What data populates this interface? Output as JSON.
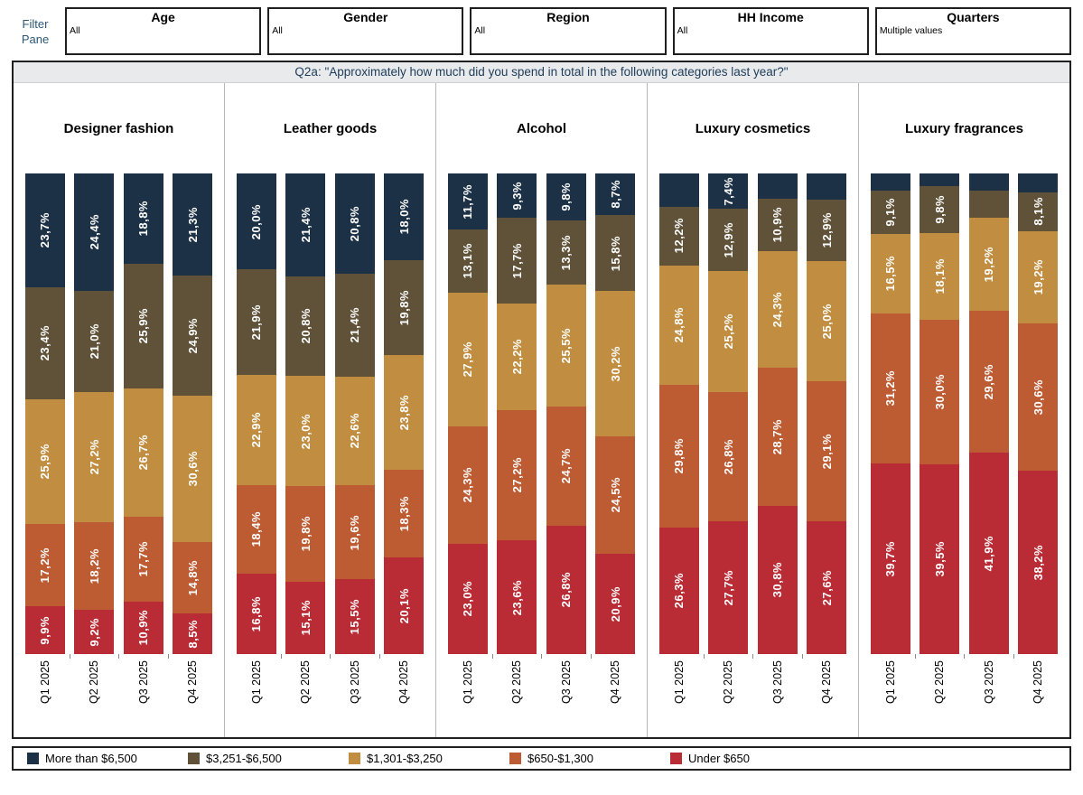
{
  "filter_pane": {
    "label_line1": "Filter",
    "label_line2": "Pane",
    "filters": [
      {
        "title": "Age",
        "value": "All"
      },
      {
        "title": "Gender",
        "value": "All"
      },
      {
        "title": "Region",
        "value": "All"
      },
      {
        "title": "HH Income",
        "value": "All"
      },
      {
        "title": "Quarters",
        "value": "Multiple values"
      }
    ]
  },
  "title_bar": {
    "text": "Q2a: \"Approximately how much did you spend in total in the following categories last year?\""
  },
  "legend": {
    "items": [
      {
        "label": "More than $6,500",
        "color": "#1c3146"
      },
      {
        "label": "$3,251-$6,500",
        "color": "#5f5238"
      },
      {
        "label": "$1,301-$3,250",
        "color": "#c18e41"
      },
      {
        "label": "$650-$1,300",
        "color": "#bd5b33"
      },
      {
        "label": "Under $650",
        "color": "#b92c35"
      }
    ]
  },
  "chart_data": {
    "type": "bar",
    "subtype": "100%-stacked-vertical",
    "title": "Q2a: \"Approximately how much did you spend in total in the following categories last year?\"",
    "categories": [
      "Q1 2025",
      "Q2 2025",
      "Q3 2025",
      "Q4 2025"
    ],
    "series_top_to_bottom": [
      "More than $6,500",
      "$3,251-$6,500",
      "$1,301-$3,250",
      "$650-$1,300",
      "Under $650"
    ],
    "colors": [
      "#1c3146",
      "#5f5238",
      "#c18e41",
      "#bd5b33",
      "#b92c35"
    ],
    "value_format": "percent with comma decimal, labels rotated 90° bottom-to-top, hidden when segment too small",
    "ylim": [
      0,
      100
    ],
    "grid": false,
    "legend_position": "bottom",
    "panels": [
      {
        "label": "Designer fashion",
        "bars": [
          {
            "x": "Q1 2025",
            "values": [
              23.7,
              23.4,
              25.9,
              17.2,
              9.9
            ],
            "labels": [
              "23,7%",
              "23,4%",
              "25,9%",
              "17,2%",
              "9,9%"
            ]
          },
          {
            "x": "Q2 2025",
            "values": [
              24.4,
              21.0,
              27.2,
              18.2,
              9.2
            ],
            "labels": [
              "24,4%",
              "21,0%",
              "27,2%",
              "18,2%",
              "9,2%"
            ]
          },
          {
            "x": "Q3 2025",
            "values": [
              18.8,
              25.9,
              26.7,
              17.7,
              10.9
            ],
            "labels": [
              "18,8%",
              "25,9%",
              "26,7%",
              "17,7%",
              "10,9%"
            ]
          },
          {
            "x": "Q4 2025",
            "values": [
              21.3,
              24.9,
              30.6,
              14.8,
              8.5
            ],
            "labels": [
              "21,3%",
              "24,9%",
              "30,6%",
              "14,8%",
              "8,5%"
            ]
          }
        ]
      },
      {
        "label": "Leather goods",
        "bars": [
          {
            "x": "Q1 2025",
            "values": [
              20.0,
              21.9,
              22.9,
              18.4,
              16.8
            ],
            "labels": [
              "20,0%",
              "21,9%",
              "22,9%",
              "18,4%",
              "16,8%"
            ]
          },
          {
            "x": "Q2 2025",
            "values": [
              21.4,
              20.8,
              23.0,
              19.8,
              15.1
            ],
            "labels": [
              "21,4%",
              "20,8%",
              "23,0%",
              "19,8%",
              "15,1%"
            ]
          },
          {
            "x": "Q3 2025",
            "values": [
              20.8,
              21.4,
              22.6,
              19.6,
              15.5
            ],
            "labels": [
              "20,8%",
              "21,4%",
              "22,6%",
              "19,6%",
              "15,5%"
            ]
          },
          {
            "x": "Q4 2025",
            "values": [
              18.0,
              19.8,
              23.8,
              18.3,
              20.1
            ],
            "labels": [
              "18,0%",
              "19,8%",
              "23,8%",
              "18,3%",
              "20,1%"
            ]
          }
        ]
      },
      {
        "label": "Alcohol",
        "bars": [
          {
            "x": "Q1 2025",
            "values": [
              11.7,
              13.1,
              27.9,
              24.3,
              23.0
            ],
            "labels": [
              "11,7%",
              "13,1%",
              "27,9%",
              "24,3%",
              "23,0%"
            ]
          },
          {
            "x": "Q2 2025",
            "values": [
              9.3,
              17.7,
              22.2,
              27.2,
              23.6
            ],
            "labels": [
              "9,3%",
              "17,7%",
              "22,2%",
              "27,2%",
              "23,6%"
            ]
          },
          {
            "x": "Q3 2025",
            "values": [
              9.8,
              13.3,
              25.5,
              24.7,
              26.8
            ],
            "labels": [
              "9,8%",
              "13,3%",
              "25,5%",
              "24,7%",
              "26,8%"
            ]
          },
          {
            "x": "Q4 2025",
            "values": [
              8.7,
              15.8,
              30.2,
              24.5,
              20.9
            ],
            "labels": [
              "8,7%",
              "15,8%",
              "30,2%",
              "24,5%",
              "20,9%"
            ]
          }
        ]
      },
      {
        "label": "Luxury cosmetics",
        "bars": [
          {
            "x": "Q1 2025",
            "values": [
              6.9,
              12.2,
              24.8,
              29.8,
              26.3
            ],
            "labels": [
              "",
              "12,2%",
              "24,8%",
              "29,8%",
              "26,3%"
            ]
          },
          {
            "x": "Q2 2025",
            "values": [
              7.4,
              12.9,
              25.2,
              26.8,
              27.7
            ],
            "labels": [
              "7,4%",
              "12,9%",
              "25,2%",
              "26,8%",
              "27,7%"
            ]
          },
          {
            "x": "Q3 2025",
            "values": [
              5.3,
              10.9,
              24.3,
              28.7,
              30.8
            ],
            "labels": [
              "",
              "10,9%",
              "24,3%",
              "28,7%",
              "30,8%"
            ]
          },
          {
            "x": "Q4 2025",
            "values": [
              5.4,
              12.9,
              25.0,
              29.1,
              27.6
            ],
            "labels": [
              "",
              "12,9%",
              "25,0%",
              "29,1%",
              "27,6%"
            ]
          }
        ]
      },
      {
        "label": "Luxury fragrances",
        "bars": [
          {
            "x": "Q1 2025",
            "values": [
              3.5,
              9.1,
              16.5,
              31.2,
              39.7
            ],
            "labels": [
              "",
              "9,1%",
              "16,5%",
              "31,2%",
              "39,7%"
            ]
          },
          {
            "x": "Q2 2025",
            "values": [
              2.6,
              9.8,
              18.1,
              30.0,
              39.5
            ],
            "labels": [
              "",
              "9,8%",
              "18,1%",
              "30,0%",
              "39,5%"
            ]
          },
          {
            "x": "Q3 2025",
            "values": [
              3.5,
              5.8,
              19.2,
              29.6,
              41.9
            ],
            "labels": [
              "",
              "",
              "19,2%",
              "29,6%",
              "41,9%"
            ]
          },
          {
            "x": "Q4 2025",
            "values": [
              3.9,
              8.1,
              19.2,
              30.6,
              38.2
            ],
            "labels": [
              "",
              "8,1%",
              "19,2%",
              "30,6%",
              "38,2%"
            ]
          }
        ]
      }
    ]
  }
}
